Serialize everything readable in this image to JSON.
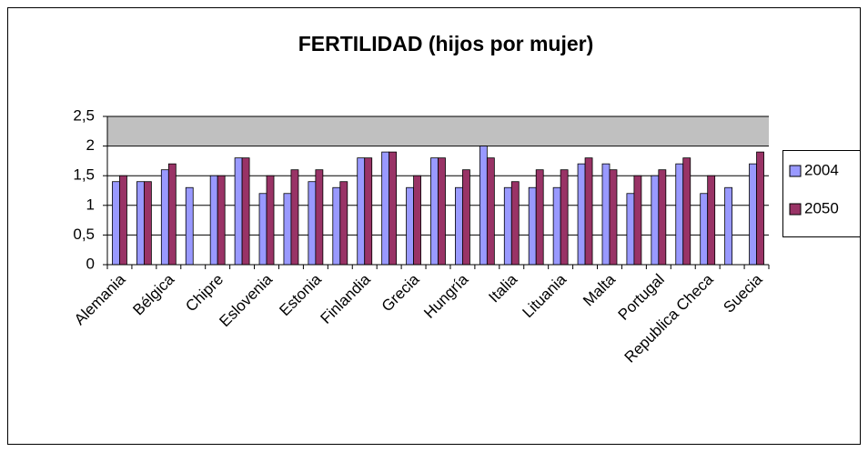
{
  "chart_data": {
    "type": "bar",
    "title": "FERTILIDAD (hijos por mujer)",
    "categories": [
      "Alemania",
      null,
      "Bélgica",
      null,
      "Chipre",
      null,
      "Eslovenia",
      null,
      "Estonia",
      null,
      "Finlandia",
      null,
      "Grecia",
      null,
      "Hungría",
      null,
      "Italia",
      null,
      "Lituania",
      null,
      "Malta",
      null,
      "Portugal",
      null,
      "Republica Checa",
      null,
      "Suecia"
    ],
    "series": [
      {
        "name": "2004",
        "color": "#9999ff",
        "values": [
          1.4,
          1.4,
          1.6,
          1.3,
          1.5,
          1.8,
          1.2,
          1.2,
          1.4,
          1.3,
          1.8,
          1.9,
          1.3,
          1.8,
          1.3,
          2.0,
          1.3,
          1.3,
          1.3,
          1.7,
          1.7,
          1.2,
          1.5,
          1.7,
          1.2,
          1.3,
          1.7
        ]
      },
      {
        "name": "2050",
        "color": "#993366",
        "values": [
          1.5,
          1.4,
          1.7,
          null,
          1.5,
          1.8,
          1.5,
          1.6,
          1.6,
          1.4,
          1.8,
          1.9,
          1.5,
          1.8,
          1.6,
          1.8,
          1.4,
          1.6,
          1.6,
          1.8,
          1.6,
          1.5,
          1.6,
          1.8,
          1.5,
          null,
          1.9
        ]
      }
    ],
    "ylim": [
      0,
      2.5
    ],
    "yticks": [
      0,
      {
        "value": 0.5,
        "label": "0,5"
      },
      1,
      {
        "value": 1.5,
        "label": "1,5"
      },
      2,
      {
        "value": 2.5,
        "label": "2,5"
      }
    ],
    "grid": true,
    "legend": "right"
  }
}
